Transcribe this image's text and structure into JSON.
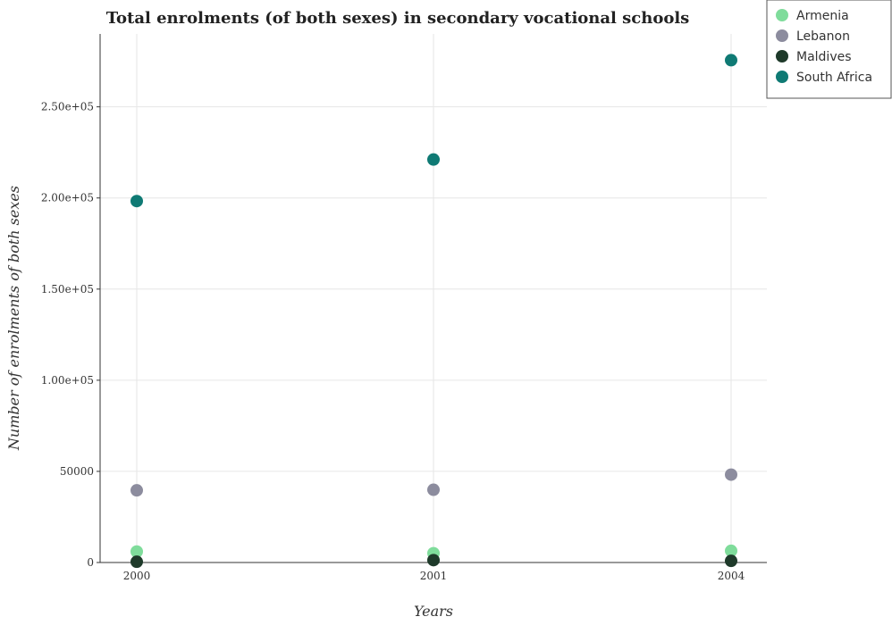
{
  "chart_data": {
    "type": "scatter",
    "title": "Total enrolments (of both sexes) in secondary vocational schools",
    "xlabel": "Years",
    "ylabel": "Number of enrolments of both sexes",
    "categories": [
      "2000",
      "2001",
      "2004"
    ],
    "ylim": [
      0,
      290000
    ],
    "yticks": [
      0,
      50000,
      100000,
      150000,
      200000,
      250000
    ],
    "ytick_labels": [
      "0",
      "50000",
      "1.00e+05",
      "1.50e+05",
      "2.00e+05",
      "2.50e+05"
    ],
    "grid": true,
    "legend_position": "top-right",
    "series": [
      {
        "name": "Armenia",
        "color": "#7fdc9b",
        "values": [
          6000,
          5100,
          6400
        ]
      },
      {
        "name": "Lebanon",
        "color": "#8c8c9e",
        "values": [
          39600,
          39900,
          48200
        ]
      },
      {
        "name": "Maldives",
        "color": "#1e3a2a",
        "values": [
          400,
          1300,
          900
        ]
      },
      {
        "name": "South Africa",
        "color": "#0f7a74",
        "values": [
          198300,
          221100,
          275600
        ]
      }
    ]
  }
}
